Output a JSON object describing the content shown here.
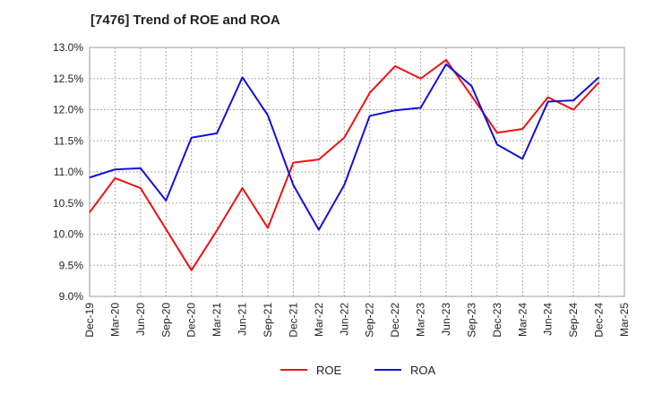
{
  "chart_data": {
    "type": "line",
    "title": "[7476]  Trend of ROE and ROA",
    "xlabel": "",
    "ylabel": "",
    "categories": [
      "Dec-19",
      "Mar-20",
      "Jun-20",
      "Sep-20",
      "Dec-20",
      "Mar-21",
      "Jun-21",
      "Sep-21",
      "Dec-21",
      "Mar-22",
      "Jun-22",
      "Sep-22",
      "Dec-22",
      "Mar-23",
      "Jun-23",
      "Sep-23",
      "Dec-23",
      "Mar-24",
      "Jun-24",
      "Sep-24",
      "Dec-24",
      "Mar-25"
    ],
    "ylim": [
      9.0,
      13.0
    ],
    "yticks": [
      9.0,
      9.5,
      10.0,
      10.5,
      11.0,
      11.5,
      12.0,
      12.5,
      13.0
    ],
    "ytick_labels": [
      "9.0%",
      "9.5%",
      "10.0%",
      "10.5%",
      "11.0%",
      "11.5%",
      "12.0%",
      "12.5%",
      "13.0%"
    ],
    "grid": true,
    "legend_position": "bottom-center",
    "series": [
      {
        "name": "ROE",
        "color": "#ee1111",
        "values": [
          10.35,
          10.9,
          10.74,
          10.08,
          9.42,
          10.06,
          10.74,
          10.1,
          11.15,
          11.2,
          11.55,
          12.27,
          12.7,
          12.5,
          12.8,
          12.22,
          11.63,
          11.69,
          12.2,
          12.0,
          12.44,
          null
        ]
      },
      {
        "name": "ROA",
        "color": "#1111dd",
        "values": [
          10.91,
          11.04,
          11.06,
          10.54,
          11.55,
          11.62,
          12.52,
          11.91,
          10.79,
          10.07,
          10.79,
          11.9,
          11.99,
          12.03,
          12.73,
          12.38,
          11.44,
          11.21,
          12.13,
          12.15,
          12.52,
          null
        ]
      }
    ]
  }
}
